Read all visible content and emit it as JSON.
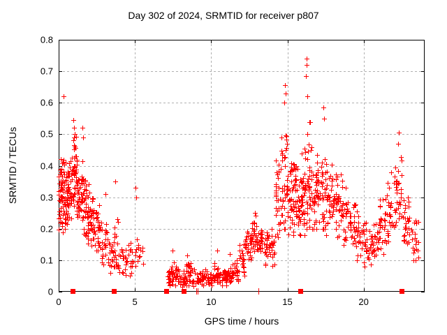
{
  "chart_data": {
    "type": "scatter",
    "title": "Day 302 of 2024, SRMTID for receiver p807",
    "xlabel": "GPS time / hours",
    "ylabel": "SRMTID / TECUs",
    "xlim": [
      0,
      24
    ],
    "ylim": [
      0,
      0.8
    ],
    "x_ticks": [
      0,
      5,
      10,
      15,
      20
    ],
    "y_ticks": [
      0,
      0.1,
      0.2,
      0.3,
      0.4,
      0.5,
      0.6,
      0.7,
      0.8
    ],
    "grid": true,
    "legend": "none",
    "marker": "plus",
    "marker_color": "#ff0000",
    "grid_color": "#b0b0b0",
    "seed": 302,
    "series": [
      {
        "name": "SRMTID",
        "bins": [
          [
            0.0,
            0.3,
            45,
            0.18,
            0.47,
            0.3
          ],
          [
            0.3,
            0.6,
            40,
            0.2,
            0.45,
            0.3
          ],
          [
            0.6,
            0.9,
            35,
            0.22,
            0.47,
            0.33
          ],
          [
            0.9,
            1.2,
            40,
            0.25,
            0.55,
            0.38
          ],
          [
            1.2,
            1.5,
            30,
            0.2,
            0.43,
            0.3
          ],
          [
            1.5,
            1.8,
            35,
            0.18,
            0.46,
            0.28
          ],
          [
            1.8,
            2.1,
            30,
            0.15,
            0.38,
            0.25
          ],
          [
            2.1,
            2.4,
            25,
            0.12,
            0.33,
            0.22
          ],
          [
            2.4,
            2.8,
            25,
            0.1,
            0.32,
            0.2
          ],
          [
            2.8,
            3.2,
            20,
            0.08,
            0.28,
            0.15
          ],
          [
            3.2,
            3.6,
            18,
            0.06,
            0.2,
            0.12
          ],
          [
            3.6,
            3.9,
            22,
            0.08,
            0.35,
            0.15
          ],
          [
            3.9,
            4.4,
            18,
            0.05,
            0.17,
            0.1
          ],
          [
            4.4,
            4.9,
            15,
            0.05,
            0.22,
            0.11
          ],
          [
            4.9,
            5.3,
            12,
            0.07,
            0.2,
            0.12
          ],
          [
            5.3,
            5.6,
            6,
            0.08,
            0.16,
            0.11
          ],
          [
            7.15,
            7.5,
            25,
            0.01,
            0.1,
            0.05
          ],
          [
            7.5,
            7.9,
            20,
            0.02,
            0.13,
            0.06
          ],
          [
            7.9,
            8.3,
            20,
            0.01,
            0.09,
            0.04
          ],
          [
            8.3,
            8.7,
            25,
            0.02,
            0.12,
            0.06
          ],
          [
            8.7,
            9.3,
            20,
            0.01,
            0.08,
            0.04
          ],
          [
            9.3,
            9.8,
            25,
            0.02,
            0.09,
            0.05
          ],
          [
            9.8,
            10.2,
            25,
            0.02,
            0.08,
            0.04
          ],
          [
            10.2,
            10.6,
            25,
            0.03,
            0.13,
            0.06
          ],
          [
            10.6,
            11.0,
            25,
            0.02,
            0.09,
            0.05
          ],
          [
            11.0,
            11.4,
            25,
            0.03,
            0.1,
            0.05
          ],
          [
            11.4,
            11.8,
            20,
            0.03,
            0.12,
            0.06
          ],
          [
            11.8,
            12.2,
            20,
            0.05,
            0.17,
            0.1
          ],
          [
            12.2,
            12.6,
            25,
            0.1,
            0.22,
            0.15
          ],
          [
            12.6,
            13.0,
            30,
            0.1,
            0.25,
            0.17
          ],
          [
            13.0,
            13.4,
            25,
            0.1,
            0.22,
            0.16
          ],
          [
            13.4,
            13.8,
            20,
            0.08,
            0.2,
            0.13
          ],
          [
            13.8,
            14.2,
            20,
            0.08,
            0.22,
            0.14
          ],
          [
            14.2,
            14.6,
            30,
            0.15,
            0.45,
            0.28
          ],
          [
            14.6,
            15.0,
            35,
            0.2,
            0.6,
            0.35
          ],
          [
            15.0,
            15.4,
            35,
            0.18,
            0.5,
            0.3
          ],
          [
            15.4,
            15.8,
            40,
            0.15,
            0.45,
            0.28
          ],
          [
            15.8,
            16.2,
            40,
            0.18,
            0.55,
            0.3
          ],
          [
            16.2,
            16.6,
            35,
            0.2,
            0.62,
            0.35
          ],
          [
            16.6,
            17.0,
            35,
            0.2,
            0.5,
            0.3
          ],
          [
            17.0,
            17.5,
            35,
            0.2,
            0.55,
            0.3
          ],
          [
            17.5,
            18.0,
            35,
            0.18,
            0.45,
            0.3
          ],
          [
            18.0,
            18.5,
            30,
            0.15,
            0.42,
            0.28
          ],
          [
            18.5,
            19.0,
            30,
            0.12,
            0.38,
            0.24
          ],
          [
            19.0,
            19.5,
            25,
            0.1,
            0.3,
            0.2
          ],
          [
            19.5,
            20.0,
            25,
            0.1,
            0.28,
            0.18
          ],
          [
            20.0,
            20.5,
            25,
            0.08,
            0.25,
            0.15
          ],
          [
            20.5,
            21.0,
            25,
            0.08,
            0.25,
            0.16
          ],
          [
            21.0,
            21.5,
            30,
            0.12,
            0.35,
            0.22
          ],
          [
            21.5,
            22.0,
            30,
            0.15,
            0.4,
            0.26
          ],
          [
            22.0,
            22.5,
            30,
            0.15,
            0.45,
            0.3
          ],
          [
            22.5,
            23.0,
            30,
            0.12,
            0.32,
            0.22
          ],
          [
            23.0,
            23.6,
            20,
            0.1,
            0.28,
            0.17
          ]
        ],
        "outliers": [
          [
            0.3,
            0.62
          ],
          [
            0.95,
            0.545
          ],
          [
            1.0,
            0.52
          ],
          [
            1.05,
            0.5
          ],
          [
            1.55,
            0.52
          ],
          [
            1.6,
            0.49
          ],
          [
            3.05,
            0.31
          ],
          [
            3.7,
            0.35
          ],
          [
            5.05,
            0.33
          ],
          [
            5.1,
            0.3
          ],
          [
            7.45,
            0.13
          ],
          [
            8.45,
            0.115
          ],
          [
            10.4,
            0.13
          ],
          [
            11.2,
            0.12
          ],
          [
            12.85,
            0.25
          ],
          [
            14.8,
            0.6
          ],
          [
            14.85,
            0.655
          ],
          [
            14.9,
            0.63
          ],
          [
            16.2,
            0.685
          ],
          [
            16.25,
            0.74
          ],
          [
            16.28,
            0.72
          ],
          [
            16.3,
            0.62
          ],
          [
            17.35,
            0.585
          ],
          [
            17.4,
            0.55
          ],
          [
            22.25,
            0.47
          ],
          [
            22.3,
            0.505
          ]
        ],
        "baseline_squares": [
          0.93,
          3.6,
          7.05,
          8.2,
          15.85,
          22.5
        ],
        "baseline_marks": [
          9.0,
          9.1,
          13.1
        ]
      }
    ]
  }
}
